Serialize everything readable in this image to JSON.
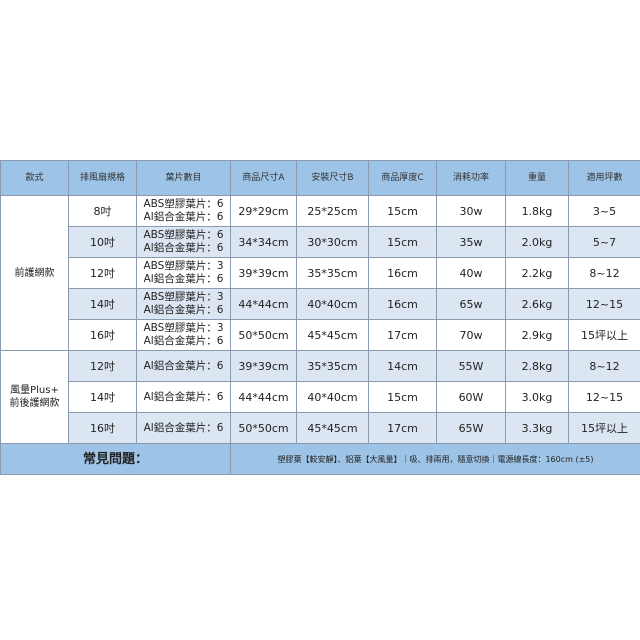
{
  "headers": [
    "款式",
    "排風扇規格",
    "葉片數目",
    "商品尺寸A",
    "安裝尺寸B",
    "商品厚度C",
    "消耗功率",
    "重量",
    "適用坪數"
  ],
  "groups": [
    {
      "name": "前護網款",
      "rows": [
        {
          "size": "8吋",
          "blades": [
            "ABS塑膠葉片：6",
            "Al鋁合金葉片：6"
          ],
          "a": "29*29cm",
          "b": "25*25cm",
          "c": "15cm",
          "power": "30w",
          "weight": "1.8kg",
          "area": "3~5"
        },
        {
          "size": "10吋",
          "blades": [
            "ABS塑膠葉片：6",
            "Al鋁合金葉片：6"
          ],
          "a": "34*34cm",
          "b": "30*30cm",
          "c": "15cm",
          "power": "35w",
          "weight": "2.0kg",
          "area": "5~7"
        },
        {
          "size": "12吋",
          "blades": [
            "ABS塑膠葉片：3",
            "Al鋁合金葉片：6"
          ],
          "a": "39*39cm",
          "b": "35*35cm",
          "c": "16cm",
          "power": "40w",
          "weight": "2.2kg",
          "area": "8~12"
        },
        {
          "size": "14吋",
          "blades": [
            "ABS塑膠葉片：3",
            "Al鋁合金葉片：6"
          ],
          "a": "44*44cm",
          "b": "40*40cm",
          "c": "16cm",
          "power": "65w",
          "weight": "2.6kg",
          "area": "12~15"
        },
        {
          "size": "16吋",
          "blades": [
            "ABS塑膠葉片：3",
            "Al鋁合金葉片：6"
          ],
          "a": "50*50cm",
          "b": "45*45cm",
          "c": "17cm",
          "power": "70w",
          "weight": "2.9kg",
          "area": "15坪以上"
        }
      ]
    },
    {
      "name": [
        "風量Plus+",
        "前後護網款"
      ],
      "rows": [
        {
          "size": "12吋",
          "blades": [
            "Al鋁合金葉片：6"
          ],
          "a": "39*39cm",
          "b": "35*35cm",
          "c": "14cm",
          "power": "55W",
          "weight": "2.8kg",
          "area": "8~12"
        },
        {
          "size": "14吋",
          "blades": [
            "Al鋁合金葉片：6"
          ],
          "a": "44*44cm",
          "b": "40*40cm",
          "c": "15cm",
          "power": "60W",
          "weight": "3.0kg",
          "area": "12~15"
        },
        {
          "size": "16吋",
          "blades": [
            "Al鋁合金葉片：6"
          ],
          "a": "50*50cm",
          "b": "45*45cm",
          "c": "17cm",
          "power": "65W",
          "weight": "3.3kg",
          "area": "15坪以上"
        }
      ]
    }
  ],
  "footer": {
    "title": "常見問題：",
    "note": "塑膠葉【較安靜】、鋁葉【大風量】｜吸、排兩用，隨意切換｜電源線長度：160cm (±5)"
  },
  "colors": {
    "header": "#9dc3e6",
    "stripe": "#dce6f2"
  }
}
